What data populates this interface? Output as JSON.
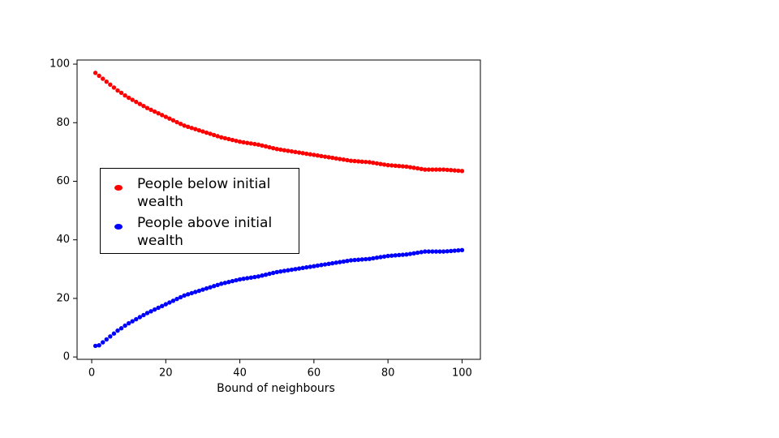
{
  "chart_data": {
    "type": "scatter",
    "xlabel": "Bound of neighbours",
    "x": [
      1,
      2,
      3,
      4,
      5,
      6,
      7,
      8,
      9,
      10,
      11,
      12,
      13,
      14,
      15,
      16,
      17,
      18,
      19,
      20,
      21,
      22,
      23,
      24,
      25,
      26,
      27,
      28,
      29,
      30,
      31,
      32,
      33,
      34,
      35,
      36,
      37,
      38,
      39,
      40,
      41,
      42,
      43,
      44,
      45,
      46,
      47,
      48,
      49,
      50,
      51,
      52,
      53,
      54,
      55,
      56,
      57,
      58,
      59,
      60,
      61,
      62,
      63,
      64,
      65,
      66,
      67,
      68,
      69,
      70,
      71,
      72,
      73,
      74,
      75,
      76,
      77,
      78,
      79,
      80,
      81,
      82,
      83,
      84,
      85,
      86,
      87,
      88,
      89,
      90,
      91,
      92,
      93,
      94,
      95,
      96,
      97,
      98,
      99,
      100
    ],
    "series": [
      {
        "name": "People below initial wealth",
        "color": "#ff0000",
        "values": [
          97,
          96,
          95,
          94,
          93,
          92,
          91,
          90.2,
          89.3,
          88.5,
          87.8,
          87.1,
          86.4,
          85.7,
          85,
          84.4,
          83.8,
          83.2,
          82.6,
          82,
          81.4,
          80.8,
          80.2,
          79.6,
          79,
          78.6,
          78.2,
          77.8,
          77.4,
          77,
          76.6,
          76.2,
          75.8,
          75.4,
          75,
          74.7,
          74.4,
          74.1,
          73.8,
          73.5,
          73.3,
          73.1,
          72.9,
          72.7,
          72.5,
          72.2,
          71.9,
          71.6,
          71.3,
          71,
          70.8,
          70.6,
          70.4,
          70.2,
          70,
          69.8,
          69.6,
          69.4,
          69.2,
          69,
          68.8,
          68.6,
          68.4,
          68.2,
          68,
          67.8,
          67.6,
          67.4,
          67.2,
          67,
          66.9,
          66.8,
          66.7,
          66.6,
          66.5,
          66.3,
          66.1,
          65.9,
          65.7,
          65.5,
          65.4,
          65.3,
          65.2,
          65.1,
          65,
          64.8,
          64.6,
          64.4,
          64.2,
          64,
          64,
          64,
          64,
          64,
          64,
          63.9,
          63.8,
          63.7,
          63.6,
          63.5
        ]
      },
      {
        "name": "People above initial wealth",
        "color": "#0000ff",
        "values": [
          3.8,
          4,
          5,
          6,
          7,
          8,
          9,
          9.8,
          10.7,
          11.5,
          12.2,
          12.9,
          13.6,
          14.3,
          15,
          15.6,
          16.2,
          16.8,
          17.4,
          18,
          18.6,
          19.2,
          19.8,
          20.4,
          21,
          21.4,
          21.8,
          22.2,
          22.6,
          23,
          23.4,
          23.8,
          24.2,
          24.6,
          25,
          25.3,
          25.6,
          25.9,
          26.2,
          26.5,
          26.7,
          26.9,
          27.1,
          27.3,
          27.5,
          27.8,
          28.1,
          28.4,
          28.7,
          29,
          29.2,
          29.4,
          29.6,
          29.8,
          30,
          30.2,
          30.4,
          30.6,
          30.8,
          31,
          31.2,
          31.4,
          31.6,
          31.8,
          32,
          32.2,
          32.4,
          32.6,
          32.8,
          33,
          33.1,
          33.2,
          33.3,
          33.4,
          33.5,
          33.7,
          33.9,
          34.1,
          34.3,
          34.5,
          34.6,
          34.7,
          34.8,
          34.9,
          35,
          35.2,
          35.4,
          35.6,
          35.8,
          36,
          36,
          36,
          36,
          36,
          36,
          36.1,
          36.2,
          36.3,
          36.4,
          36.5
        ]
      }
    ],
    "xlim": [
      -3.95,
      104.95
    ],
    "ylim": [
      -0.8,
      101.4
    ],
    "xticks": [
      0,
      20,
      40,
      60,
      80,
      100
    ],
    "yticks": [
      0,
      20,
      40,
      60,
      80,
      100
    ]
  }
}
